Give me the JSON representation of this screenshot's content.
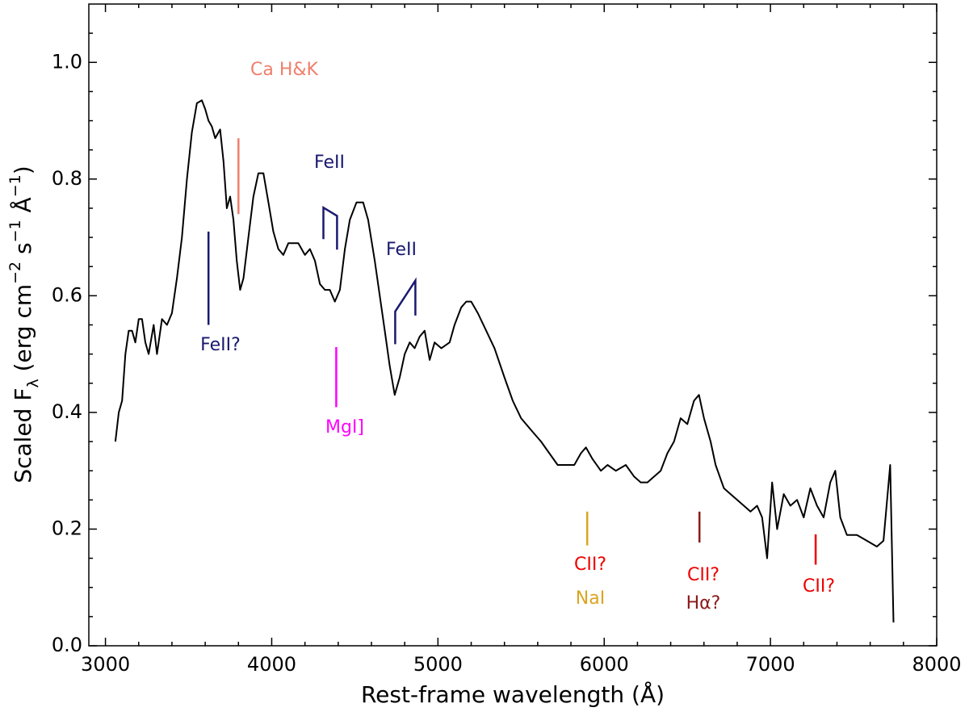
{
  "chart_data": {
    "type": "line",
    "xlabel": "Rest-frame wavelength (Å)",
    "ylabel": [
      "Scaled F",
      "λ",
      " (erg cm",
      "−2",
      " s",
      "−1",
      " Å",
      "−1",
      ")"
    ],
    "xlim": [
      2900,
      8000
    ],
    "ylim": [
      0,
      1.1
    ],
    "xticks": [
      3000,
      4000,
      5000,
      6000,
      7000,
      8000
    ],
    "yticks": [
      {
        "value": 0,
        "label": "0.0"
      },
      0.2,
      0.4,
      0.6,
      0.8,
      {
        "value": 1,
        "label": "1.0"
      }
    ],
    "xminorticks": [
      3200,
      3400,
      3600,
      3800,
      4200,
      4400,
      4600,
      4800,
      5200,
      5400,
      5600,
      5800,
      6200,
      6400,
      6600,
      6800,
      7200,
      7400,
      7600,
      7800
    ],
    "yminorticks": [
      0.05,
      0.1,
      0.15,
      0.25,
      0.3,
      0.35,
      0.45,
      0.5,
      0.55,
      0.65,
      0.7,
      0.75,
      0.85,
      0.9,
      0.95,
      1.05
    ],
    "color": "#000000",
    "x": [
      3060,
      3080,
      3100,
      3120,
      3140,
      3160,
      3180,
      3200,
      3220,
      3240,
      3260,
      3290,
      3310,
      3340,
      3370,
      3400,
      3430,
      3460,
      3490,
      3520,
      3550,
      3580,
      3600,
      3620,
      3640,
      3660,
      3690,
      3710,
      3730,
      3750,
      3770,
      3790,
      3810,
      3830,
      3860,
      3890,
      3920,
      3950,
      3980,
      4010,
      4040,
      4070,
      4100,
      4130,
      4160,
      4200,
      4230,
      4260,
      4290,
      4320,
      4350,
      4380,
      4410,
      4440,
      4470,
      4510,
      4550,
      4580,
      4620,
      4650,
      4680,
      4710,
      4740,
      4770,
      4800,
      4830,
      4860,
      4890,
      4920,
      4950,
      4980,
      5020,
      5070,
      5100,
      5140,
      5170,
      5200,
      5240,
      5290,
      5340,
      5400,
      5450,
      5500,
      5560,
      5620,
      5670,
      5720,
      5780,
      5820,
      5860,
      5890,
      5930,
      5980,
      6020,
      6070,
      6130,
      6180,
      6220,
      6260,
      6300,
      6340,
      6380,
      6420,
      6460,
      6500,
      6540,
      6570,
      6600,
      6640,
      6670,
      6720,
      6760,
      6800,
      6840,
      6880,
      6920,
      6950,
      6980,
      7010,
      7040,
      7080,
      7120,
      7160,
      7200,
      7240,
      7280,
      7320,
      7360,
      7390,
      7420,
      7460,
      7520,
      7580,
      7640,
      7680,
      7720,
      7740
    ],
    "values": [
      0.35,
      0.4,
      0.42,
      0.5,
      0.54,
      0.54,
      0.52,
      0.56,
      0.56,
      0.52,
      0.5,
      0.55,
      0.5,
      0.56,
      0.55,
      0.57,
      0.63,
      0.7,
      0.8,
      0.88,
      0.93,
      0.935,
      0.92,
      0.9,
      0.89,
      0.87,
      0.885,
      0.83,
      0.75,
      0.77,
      0.73,
      0.66,
      0.61,
      0.63,
      0.7,
      0.77,
      0.81,
      0.81,
      0.76,
      0.71,
      0.68,
      0.67,
      0.69,
      0.69,
      0.69,
      0.67,
      0.68,
      0.66,
      0.62,
      0.61,
      0.61,
      0.59,
      0.61,
      0.68,
      0.73,
      0.76,
      0.76,
      0.73,
      0.66,
      0.6,
      0.54,
      0.48,
      0.43,
      0.46,
      0.5,
      0.52,
      0.51,
      0.53,
      0.54,
      0.49,
      0.52,
      0.51,
      0.52,
      0.55,
      0.58,
      0.59,
      0.59,
      0.57,
      0.54,
      0.51,
      0.46,
      0.42,
      0.39,
      0.37,
      0.35,
      0.33,
      0.31,
      0.31,
      0.31,
      0.33,
      0.34,
      0.32,
      0.3,
      0.31,
      0.3,
      0.31,
      0.29,
      0.28,
      0.28,
      0.29,
      0.3,
      0.33,
      0.35,
      0.39,
      0.38,
      0.42,
      0.43,
      0.39,
      0.35,
      0.31,
      0.27,
      0.26,
      0.25,
      0.24,
      0.23,
      0.24,
      0.22,
      0.15,
      0.28,
      0.2,
      0.26,
      0.24,
      0.25,
      0.22,
      0.27,
      0.24,
      0.22,
      0.28,
      0.3,
      0.22,
      0.19,
      0.19,
      0.18,
      0.17,
      0.18,
      0.31,
      0.04
    ],
    "markers": [
      {
        "x": [
          3800,
          3800
        ],
        "y": [
          0.74,
          0.87
        ],
        "color": "#f07f6c"
      },
      {
        "x": [
          3620,
          3620
        ],
        "y": [
          0.55,
          0.71
        ],
        "color": "#191970"
      },
      {
        "x": [
          4311,
          4311,
          4393,
          4393
        ],
        "y": [
          0.697,
          0.751,
          0.737,
          0.679
        ],
        "color": "#191970"
      },
      {
        "x": [
          4743,
          4743,
          4864,
          4864
        ],
        "y": [
          0.517,
          0.573,
          0.626,
          0.566
        ],
        "color": "#191970"
      },
      {
        "x": [
          4388,
          4388
        ],
        "y": [
          0.409,
          0.512
        ],
        "color": "#ff00ff"
      },
      {
        "x": [
          5898,
          5898
        ],
        "y": [
          0.172,
          0.23
        ],
        "color": "#daa520"
      },
      {
        "x": [
          6573,
          6573
        ],
        "y": [
          0.177,
          0.23
        ],
        "color": "#8b1a1a"
      },
      {
        "x": [
          7272,
          7272
        ],
        "y": [
          0.139,
          0.191
        ],
        "color": "#ee0000"
      }
    ],
    "annotations": [
      {
        "text": "Ca H&K",
        "color": "#f07f6c"
      },
      {
        "text": "FeII?",
        "color": "#191970"
      },
      {
        "text": "FeII",
        "color": "#191970"
      },
      {
        "text": "FeII",
        "color": "#191970"
      },
      {
        "text": "MgI]",
        "color": "#ff00ff"
      },
      {
        "text": "CII?",
        "color": "#ee0000"
      },
      {
        "text": "NaI",
        "color": "#daa520"
      },
      {
        "text": "CII?",
        "color": "#ee0000"
      },
      {
        "text": "Hα?",
        "color": "#8b1a1a"
      },
      {
        "text": "CII?",
        "color": "#ee0000"
      }
    ]
  }
}
